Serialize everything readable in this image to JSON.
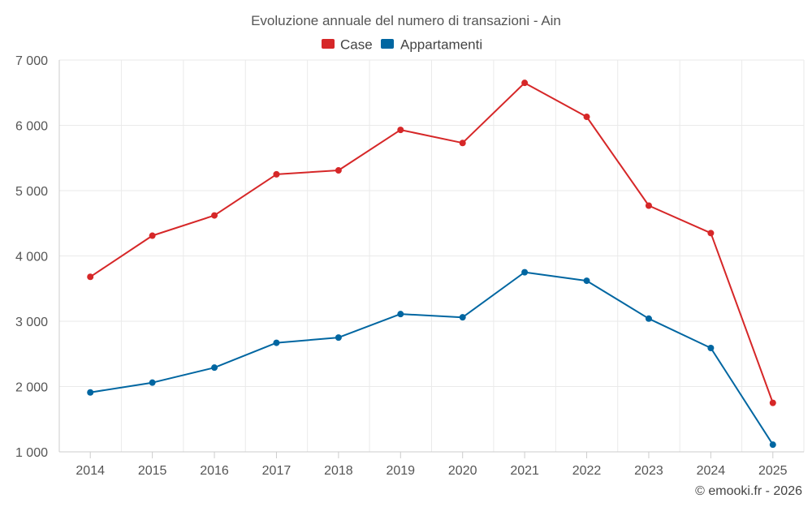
{
  "chart_data": {
    "type": "line",
    "title": "Evoluzione annuale del numero di transazioni - Ain",
    "categories": [
      "2014",
      "2015",
      "2016",
      "2017",
      "2018",
      "2019",
      "2020",
      "2021",
      "2022",
      "2023",
      "2024",
      "2025"
    ],
    "series": [
      {
        "name": "Case",
        "color": "#d62728",
        "values": [
          3680,
          4310,
          4620,
          5250,
          5310,
          5930,
          5730,
          6650,
          6130,
          4770,
          4350,
          1750
        ]
      },
      {
        "name": "Appartamenti",
        "color": "#0066a1",
        "values": [
          1910,
          2060,
          2290,
          2670,
          2750,
          3110,
          3060,
          3750,
          3620,
          3040,
          2590,
          1110
        ]
      }
    ],
    "ylim": [
      1000,
      7000
    ],
    "yticks": [
      1000,
      2000,
      3000,
      4000,
      5000,
      6000,
      7000
    ],
    "ytick_labels": [
      "1 000",
      "2 000",
      "3 000",
      "4 000",
      "5 000",
      "6 000",
      "7 000"
    ],
    "xlabel": "",
    "ylabel": "",
    "grid": true,
    "legend": "top-center"
  },
  "credit": "© emooki.fr - 2026"
}
